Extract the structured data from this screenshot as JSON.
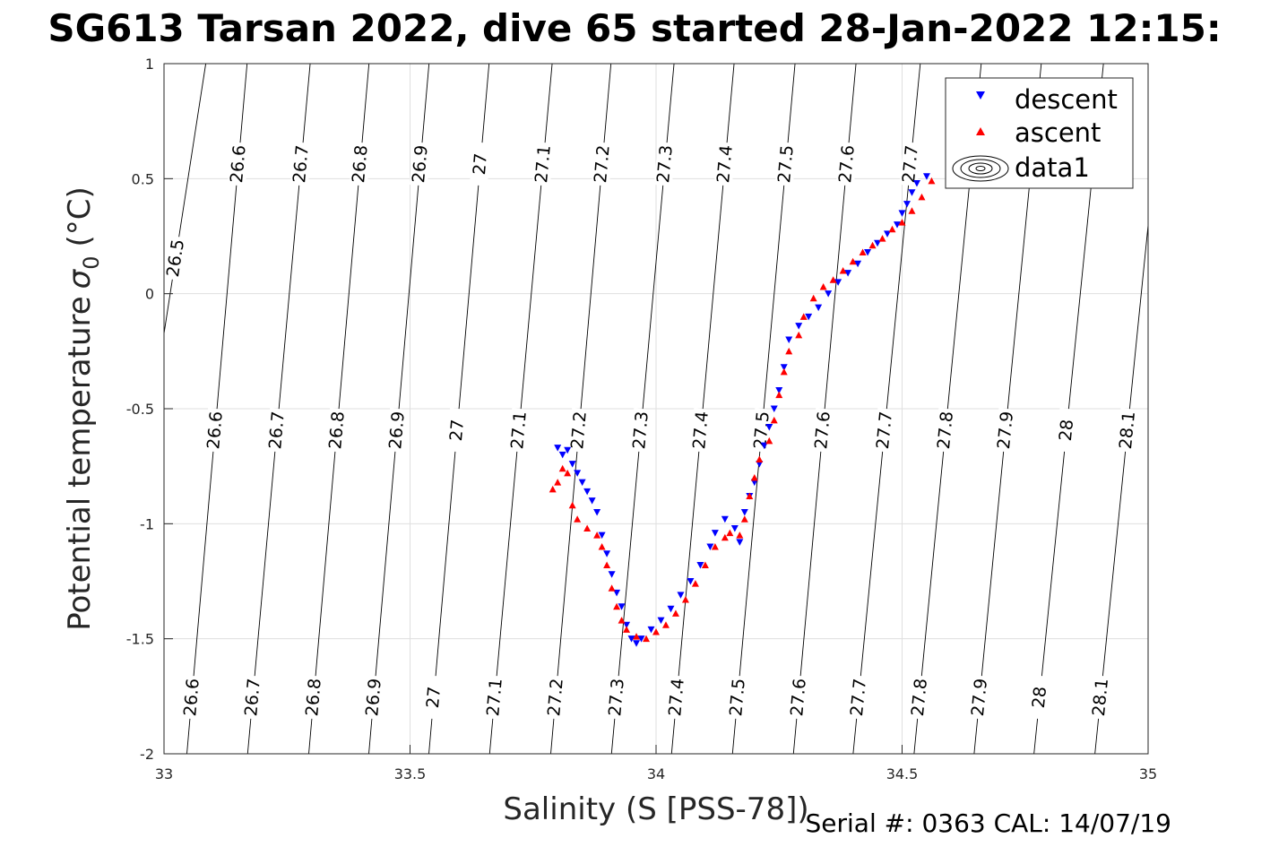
{
  "chart_data": {
    "type": "scatter",
    "title": "SG613 Tarsan 2022, dive 65 started 28-Jan-2022 12:15:",
    "xlabel": "Salinity (S [PSS-78])",
    "ylabel": "Potential temperature",
    "ylabel_symbol": "σ",
    "ylabel_subscript": "0",
    "ylabel_unit": "(°C)",
    "xlim": [
      33,
      35
    ],
    "ylim": [
      -2,
      1
    ],
    "xticks": [
      "33",
      "33.5",
      "34",
      "34.5",
      "35"
    ],
    "yticks": [
      "1",
      "0.5",
      "0",
      "-0.5",
      "-1",
      "-1.5",
      "-2"
    ],
    "grid": true,
    "legend": {
      "position": "top-right",
      "entries": [
        "descent",
        "ascent",
        "data1"
      ]
    },
    "contour_labels": [
      "26.5",
      "26.6",
      "26.7",
      "26.8",
      "26.9",
      "27",
      "27.1",
      "27.2",
      "27.3",
      "27.4",
      "27.5",
      "27.6",
      "27.7",
      "27.8",
      "27.9",
      "28",
      "28.1"
    ],
    "series": [
      {
        "name": "descent",
        "color": "#0000ff",
        "marker": "triangle-down",
        "points": [
          [
            33.8,
            -0.67
          ],
          [
            33.81,
            -0.7
          ],
          [
            33.82,
            -0.68
          ],
          [
            33.83,
            -0.74
          ],
          [
            33.84,
            -0.78
          ],
          [
            33.85,
            -0.82
          ],
          [
            33.86,
            -0.86
          ],
          [
            33.87,
            -0.9
          ],
          [
            33.88,
            -0.95
          ],
          [
            33.89,
            -1.05
          ],
          [
            33.9,
            -1.13
          ],
          [
            33.91,
            -1.22
          ],
          [
            33.92,
            -1.3
          ],
          [
            33.93,
            -1.36
          ],
          [
            33.94,
            -1.44
          ],
          [
            33.95,
            -1.5
          ],
          [
            33.96,
            -1.52
          ],
          [
            33.97,
            -1.5
          ],
          [
            33.99,
            -1.46
          ],
          [
            34.01,
            -1.42
          ],
          [
            34.03,
            -1.37
          ],
          [
            34.05,
            -1.31
          ],
          [
            34.07,
            -1.25
          ],
          [
            34.09,
            -1.18
          ],
          [
            34.11,
            -1.1
          ],
          [
            34.12,
            -1.04
          ],
          [
            34.14,
            -0.98
          ],
          [
            34.16,
            -1.02
          ],
          [
            34.17,
            -1.08
          ],
          [
            34.18,
            -0.95
          ],
          [
            34.19,
            -0.88
          ],
          [
            34.2,
            -0.82
          ],
          [
            34.21,
            -0.74
          ],
          [
            34.22,
            -0.66
          ],
          [
            34.23,
            -0.58
          ],
          [
            34.24,
            -0.5
          ],
          [
            34.25,
            -0.42
          ],
          [
            34.26,
            -0.32
          ],
          [
            34.27,
            -0.2
          ],
          [
            34.29,
            -0.14
          ],
          [
            34.31,
            -0.1
          ],
          [
            34.33,
            -0.06
          ],
          [
            34.35,
            0.0
          ],
          [
            34.37,
            0.05
          ],
          [
            34.39,
            0.09
          ],
          [
            34.41,
            0.13
          ],
          [
            34.43,
            0.18
          ],
          [
            34.45,
            0.22
          ],
          [
            34.47,
            0.26
          ],
          [
            34.49,
            0.3
          ],
          [
            34.5,
            0.35
          ],
          [
            34.51,
            0.39
          ],
          [
            34.52,
            0.44
          ],
          [
            34.53,
            0.48
          ],
          [
            34.55,
            0.51
          ]
        ]
      },
      {
        "name": "ascent",
        "color": "#ff0000",
        "marker": "triangle-up",
        "points": [
          [
            33.79,
            -0.85
          ],
          [
            33.8,
            -0.82
          ],
          [
            33.81,
            -0.76
          ],
          [
            33.82,
            -0.78
          ],
          [
            33.83,
            -0.92
          ],
          [
            33.84,
            -0.98
          ],
          [
            33.86,
            -1.02
          ],
          [
            33.88,
            -1.05
          ],
          [
            33.89,
            -1.1
          ],
          [
            33.9,
            -1.18
          ],
          [
            33.91,
            -1.28
          ],
          [
            33.92,
            -1.36
          ],
          [
            33.93,
            -1.42
          ],
          [
            33.94,
            -1.46
          ],
          [
            33.96,
            -1.49
          ],
          [
            33.98,
            -1.5
          ],
          [
            34.0,
            -1.47
          ],
          [
            34.02,
            -1.44
          ],
          [
            34.04,
            -1.39
          ],
          [
            34.06,
            -1.33
          ],
          [
            34.08,
            -1.26
          ],
          [
            34.1,
            -1.18
          ],
          [
            34.12,
            -1.1
          ],
          [
            34.14,
            -1.06
          ],
          [
            34.15,
            -1.04
          ],
          [
            34.17,
            -1.05
          ],
          [
            34.18,
            -0.98
          ],
          [
            34.19,
            -0.88
          ],
          [
            34.2,
            -0.8
          ],
          [
            34.21,
            -0.72
          ],
          [
            34.23,
            -0.64
          ],
          [
            34.24,
            -0.55
          ],
          [
            34.25,
            -0.44
          ],
          [
            34.26,
            -0.34
          ],
          [
            34.27,
            -0.25
          ],
          [
            34.29,
            -0.18
          ],
          [
            34.3,
            -0.1
          ],
          [
            34.32,
            -0.02
          ],
          [
            34.34,
            0.03
          ],
          [
            34.36,
            0.06
          ],
          [
            34.38,
            0.1
          ],
          [
            34.4,
            0.14
          ],
          [
            34.42,
            0.18
          ],
          [
            34.44,
            0.21
          ],
          [
            34.46,
            0.24
          ],
          [
            34.48,
            0.28
          ],
          [
            34.5,
            0.31
          ],
          [
            34.52,
            0.36
          ],
          [
            34.54,
            0.42
          ],
          [
            34.56,
            0.49
          ]
        ]
      }
    ]
  },
  "footer": {
    "serial": "Serial #: 0363  CAL: 14/07/19"
  }
}
